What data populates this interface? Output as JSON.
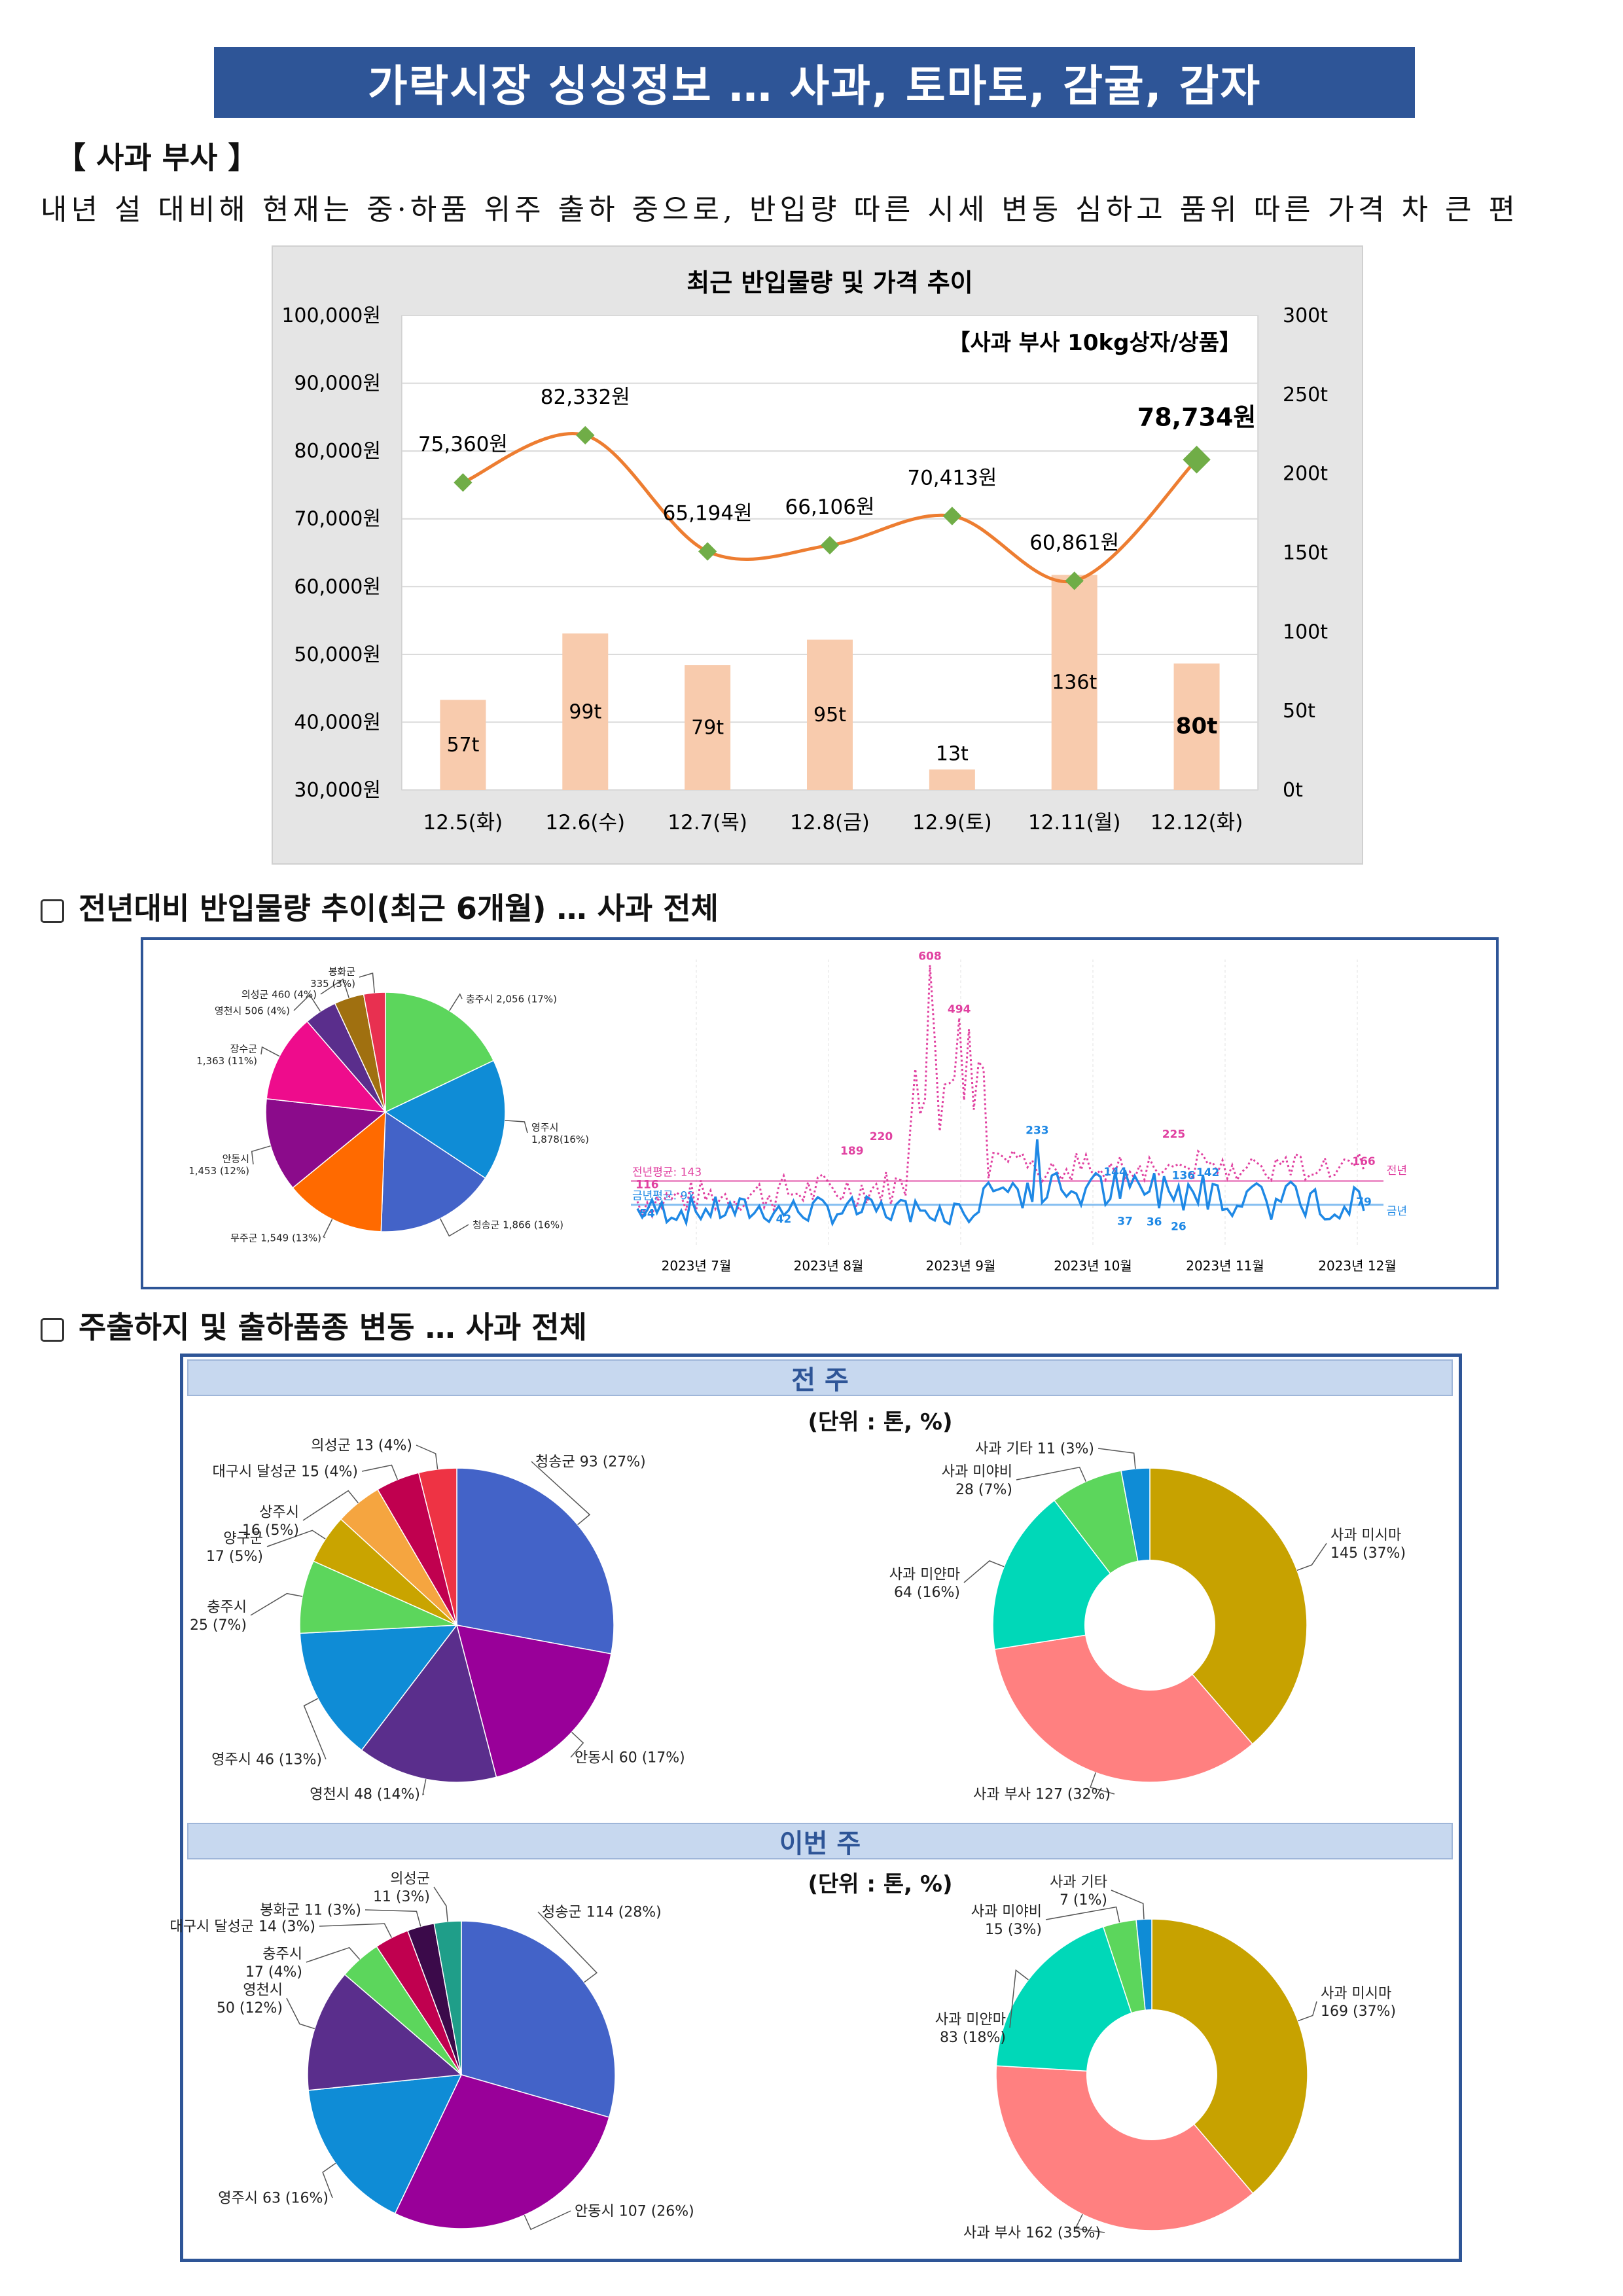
{
  "page_title": "가락시장 싱싱정보 … 사과, 토마토, 감귤, 감자",
  "section_label": "【 사과 부사 】",
  "lead_text": "내년 설 대비해 현재는 중·하품 위주 출하 중으로, 반입량 따른 시세 변동 심하고 품위 따른 가격 차 큰 편",
  "section2_title": "전년대비 반입물량 추이(최근 6개월) … 사과 전체",
  "section3_title": "주출하지 및 출하품종 변동 … 사과 전체",
  "colors": {
    "title_bg": "#2e5597",
    "bar": "#f8cbad",
    "line": "#ed7d31",
    "marker": "#70ad47",
    "prev_year": "#e040a0",
    "this_year": "#1e88e5"
  },
  "chart_data": [
    {
      "type": "bar+line",
      "title": "최근 반입물량 및 가격 추이",
      "subtitle": "【사과 부사 10kg상자/상품】",
      "categories": [
        "12.5(화)",
        "12.6(수)",
        "12.7(목)",
        "12.8(금)",
        "12.9(토)",
        "12.11(월)",
        "12.12(화)"
      ],
      "y_left": {
        "min": 30000,
        "max": 100000,
        "step": 10000,
        "suffix": "원"
      },
      "y_right": {
        "min": 0,
        "max": 300,
        "step": 50,
        "suffix": "t"
      },
      "bars": {
        "values": [
          57,
          99,
          79,
          95,
          13,
          136,
          80
        ],
        "labels": [
          "57t",
          "99t",
          "79t",
          "95t",
          "13t",
          "136t",
          "80t"
        ]
      },
      "line": {
        "values": [
          75360,
          82332,
          65194,
          66106,
          70413,
          60861,
          78734
        ],
        "labels": [
          "75,360원",
          "82,332원",
          "65,194원",
          "66,106원",
          "70,413원",
          "60,861원",
          "78,734원"
        ]
      }
    },
    {
      "type": "pie",
      "values": [
        2056,
        1878,
        1866,
        1549,
        1453,
        1363,
        506,
        460,
        335
      ],
      "labels": [
        "충주시 2,056 (17%)",
        "영주시\n1,878(16%)",
        "청송군 1,866 (16%)",
        "무주군 1,549 (13%)",
        "안동시\n1,453 (12%)",
        "장수군\n1,363 (11%)",
        "영천시 506 (4%)",
        "의성군 460 (4%)",
        "봉화군\n335 (3%)"
      ],
      "colors": [
        "#5cd65c",
        "#0f8cd6",
        "#4363c8",
        "#ff6a00",
        "#8b0b8b",
        "#ee0c8c",
        "#5a2e8c",
        "#a07010",
        "#e83050",
        "#1f9e89"
      ]
    },
    {
      "type": "line",
      "series": [
        {
          "name": "전년",
          "color": "#e040a0",
          "avg_label": "전년평균: 143",
          "avg": 143
        },
        {
          "name": "금년",
          "color": "#1e88e5",
          "avg_label": "금년평균: 92",
          "avg": 92
        }
      ],
      "x_ticks": [
        "2023년 7월",
        "2023년 8월",
        "2023년 9월",
        "2023년 10월",
        "2023년 11월",
        "2023년 12월"
      ],
      "y_range": [
        0,
        620
      ],
      "annotations": [
        "608",
        "494",
        "220",
        "189",
        "233",
        "225",
        "144",
        "136",
        "142",
        "166",
        "79",
        "116",
        "54",
        "37",
        "36",
        "26",
        "42"
      ]
    },
    {
      "type": "pie",
      "group": "전 주",
      "unit": "(단위 : 톤, %)",
      "values": [
        93,
        60,
        48,
        46,
        25,
        17,
        16,
        15,
        13
      ],
      "labels": [
        "청송군 93 (27%)",
        "안동시 60 (17%)",
        "영천시 48 (14%)",
        "영주시 46 (13%)",
        "충주시\n25 (7%)",
        "양구군\n17 (5%)",
        "상주시\n16 (5%)",
        "대구시 달성군 15 (4%)",
        "의성군 13 (4%)"
      ],
      "colors": [
        "#4363c8",
        "#990099",
        "#5a2e8c",
        "#0f8cd6",
        "#5cd65c",
        "#c9a400",
        "#f5a540",
        "#c0004f",
        "#ee3344",
        "#9c6a10"
      ]
    },
    {
      "type": "donut",
      "group": "전 주",
      "values": [
        145,
        127,
        64,
        28,
        11
      ],
      "labels": [
        "사과 미시마\n145 (37%)",
        "사과 부사 127 (32%)",
        "사과 미얀마\n64 (16%)",
        "사과 미야비\n28 (7%)",
        "사과 기타 11 (3%)"
      ],
      "colors": [
        "#c7a200",
        "#ff8080",
        "#00d8b8",
        "#5cd65c",
        "#0f8cd6",
        "#ff6a00",
        "#8b0b8b",
        "#4363c8"
      ]
    },
    {
      "type": "pie",
      "group": "이번 주",
      "unit": "(단위 : 톤, %)",
      "values": [
        114,
        107,
        63,
        50,
        17,
        14,
        11,
        11
      ],
      "labels": [
        "청송군 114 (28%)",
        "안동시 107 (26%)",
        "영주시 63 (16%)",
        "영천시\n50 (12%)",
        "충주시\n17 (4%)",
        "대구시 달성군 14 (3%)",
        "봉화군 11 (3%)",
        "의성군\n11 (3%)"
      ],
      "colors": [
        "#4363c8",
        "#990099",
        "#0f8cd6",
        "#5a2e8c",
        "#5cd65c",
        "#c0004f",
        "#3b0a4a",
        "#1f9e89",
        "#c9a400",
        "#9c6a10"
      ]
    },
    {
      "type": "donut",
      "group": "이번 주",
      "values": [
        169,
        162,
        83,
        15,
        7
      ],
      "labels": [
        "사과 미시마\n169 (37%)",
        "사과 부사 162 (35%)",
        "사과 미얀마\n83 (18%)",
        "사과 미야비\n15 (3%)",
        "사과 기타\n7 (1%)"
      ],
      "colors": [
        "#c7a200",
        "#ff8080",
        "#00d8b8",
        "#5cd65c",
        "#0f8cd6",
        "#4363c8",
        "#ff6a00",
        "#8b0b8b"
      ]
    }
  ],
  "panel3": {
    "band_prev": "전 주",
    "band_this": "이번 주",
    "unit_label": "(단위 : 톤, %)"
  }
}
